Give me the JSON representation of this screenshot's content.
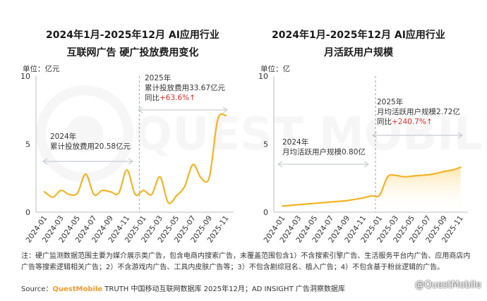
{
  "watermark": "QUEST MOBILE",
  "chart_data": [
    {
      "type": "line",
      "title_line1": "2024年1月-2025年12月 AI应用行业",
      "title_line2": "互联网广告 硬广投放费用变化",
      "unit_label": "单位：亿元",
      "ylim": [
        0,
        10
      ],
      "yticks": [
        "0",
        "5",
        "10"
      ],
      "x": [
        "2024-01",
        "2024-02",
        "2024-03",
        "2024-04",
        "2024-05",
        "2024-06",
        "2024-07",
        "2024-08",
        "2024-09",
        "2024-10",
        "2024-11",
        "2024-12",
        "2025-01",
        "2025-02",
        "2025-03",
        "2025-04",
        "2025-05",
        "2025-06",
        "2025-07",
        "2025-08",
        "2025-09",
        "2025-10",
        "2025-11",
        "2025-12"
      ],
      "xtick_labels": [
        "2024-01",
        "2024-03",
        "2024-05",
        "2024-07",
        "2024-09",
        "2024-11",
        "2025-01",
        "2025-03",
        "2025-05",
        "2025-07",
        "2025-09",
        "2025-11"
      ],
      "values": [
        1.5,
        1.1,
        1.6,
        1.3,
        1.4,
        2.8,
        1.3,
        1.6,
        1.5,
        1.4,
        3.1,
        1.3,
        1.6,
        1.3,
        2.6,
        0.7,
        1.2,
        1.9,
        3.5,
        2.5,
        2.6,
        6.8,
        7.1,
        null
      ],
      "split_after": "2024-12",
      "annotations": [
        {
          "year": "2024年",
          "text": "累计投放费用20.58亿元"
        },
        {
          "year": "2025年",
          "text": "累计投放费用33.67亿元",
          "yoy_label": "同比",
          "yoy_value": "+63.6%↑"
        }
      ]
    },
    {
      "type": "area",
      "title_line1": "2024年1月-2025年12月 AI应用行业",
      "title_line2": "月活跃用户规模",
      "unit_label": "单位：亿",
      "ylim": [
        0,
        10
      ],
      "yticks": [
        "0",
        "5",
        "10"
      ],
      "x": [
        "2024-01",
        "2024-02",
        "2024-03",
        "2024-04",
        "2024-05",
        "2024-06",
        "2024-07",
        "2024-08",
        "2024-09",
        "2024-10",
        "2024-11",
        "2024-12",
        "2025-01",
        "2025-02",
        "2025-03",
        "2025-04",
        "2025-05",
        "2025-06",
        "2025-07",
        "2025-08",
        "2025-09",
        "2025-10",
        "2025-11",
        "2025-12"
      ],
      "xtick_labels": [
        "2024-01",
        "2024-03",
        "2024-05",
        "2024-07",
        "2024-09",
        "2024-11",
        "2025-01",
        "2025-03",
        "2025-05",
        "2025-07",
        "2025-09",
        "2025-11"
      ],
      "values": [
        0.45,
        0.5,
        0.55,
        0.6,
        0.65,
        0.7,
        0.75,
        0.8,
        0.85,
        0.95,
        1.05,
        1.2,
        1.25,
        2.6,
        2.7,
        2.6,
        2.65,
        2.7,
        2.75,
        2.85,
        3.0,
        3.1,
        3.3,
        null
      ],
      "split_after": "2024-12",
      "annotations": [
        {
          "year": "2024年",
          "text": "月均活跃用户规模0.80亿"
        },
        {
          "year": "2025年",
          "text": "月均活跃用户规模2.72亿",
          "yoy_label": "同比",
          "yoy_value": "+240.7%↑"
        }
      ]
    }
  ],
  "footer": {
    "note": "注：硬广监测数据范围主要为媒介展示类广告，包含电商内搜索广告，未覆盖范围包含1）不含搜索引擎广告、生活服务平台内广告、应用商店内广告等搜索逻辑相关广告；2）不含游戏内广告、工具内皮肤广告等；3）不包含剧综冠名、植入广告；4）不包含基于粉丝逻辑的广告。",
    "source_prefix": "Source：",
    "source_brand": "QuestMobile",
    "source_rest": " TRUTH 中国移动互联网数据库 2025年12月；AD INSIGHT 广告洞察数据库",
    "handle": "@QuestMobile"
  },
  "colors": {
    "line": "#f5b323",
    "area_top": "#fde3a6",
    "bracket": "#c8ccd2",
    "highlight_red": "#e0302a",
    "text": "#333333"
  }
}
